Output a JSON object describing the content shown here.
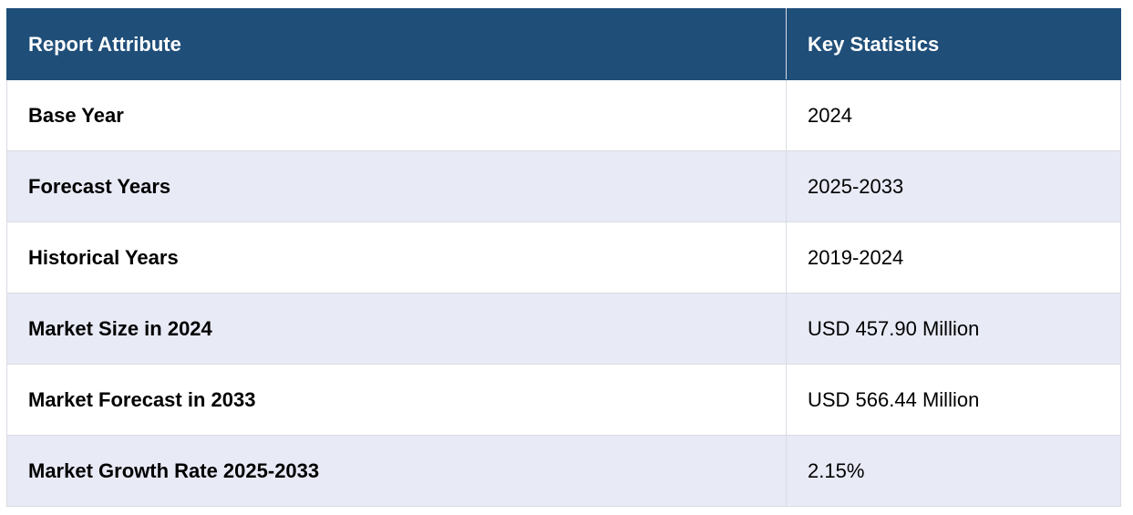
{
  "table": {
    "headers": [
      "Report Attribute",
      "Key Statistics"
    ],
    "rows": [
      {
        "attribute": "Base Year",
        "value": "2024"
      },
      {
        "attribute": "Forecast Years",
        "value": "2025-2033"
      },
      {
        "attribute": "Historical Years",
        "value": "2019-2024"
      },
      {
        "attribute": "Market Size in 2024",
        "value": "USD 457.90 Million"
      },
      {
        "attribute": "Market Forecast in 2033",
        "value": "USD 566.44 Million"
      },
      {
        "attribute": "Market Growth Rate 2025-2033",
        "value": "2.15%"
      }
    ]
  },
  "colors": {
    "header_bg": "#1f4e79",
    "header_text": "#ffffff",
    "row_alt_bg": "#e8eaf6",
    "border": "#d9dce3"
  }
}
